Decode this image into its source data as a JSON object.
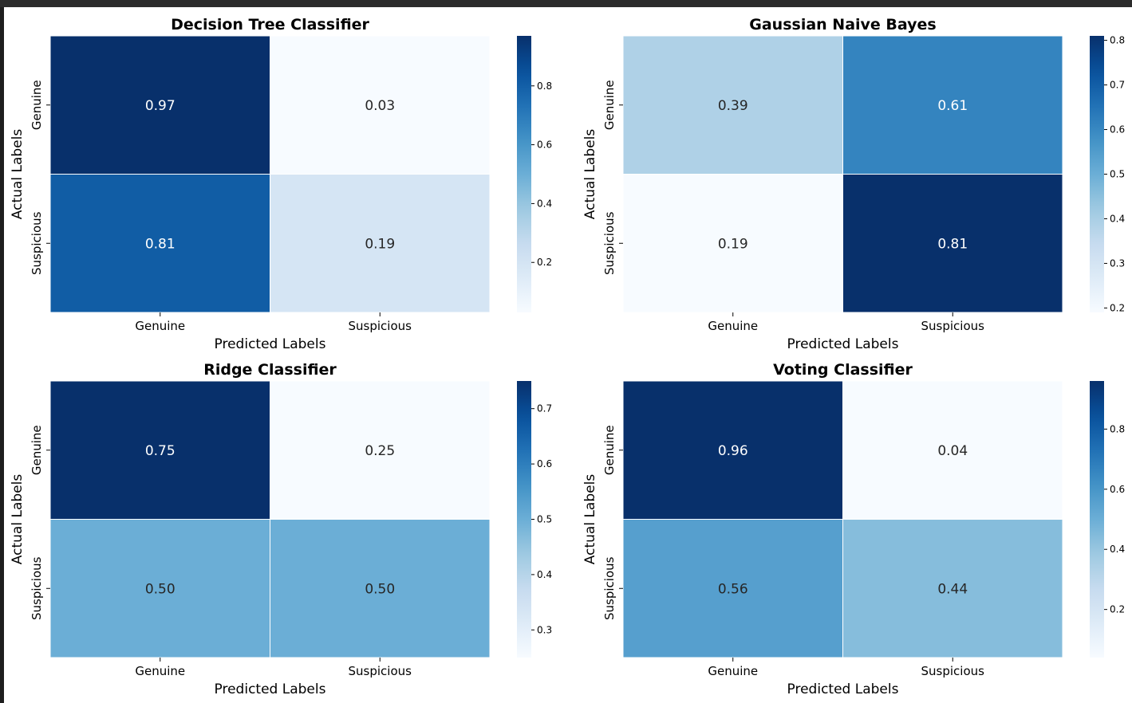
{
  "chart_data": [
    {
      "type": "heatmap",
      "title": "Decision Tree Classifier",
      "xlabel": "Predicted Labels",
      "ylabel": "Actual Labels",
      "x_categories": [
        "Genuine",
        "Suspicious"
      ],
      "y_categories": [
        "Genuine",
        "Suspicious"
      ],
      "values": [
        [
          0.97,
          0.03
        ],
        [
          0.81,
          0.19
        ]
      ],
      "value_labels": [
        [
          "0.97",
          "0.03"
        ],
        [
          "0.81",
          "0.19"
        ]
      ],
      "colorbar_ticks": [
        0.2,
        0.4,
        0.6,
        0.8
      ],
      "colorbar_tick_labels": [
        "0.2",
        "0.4",
        "0.6",
        "0.8"
      ],
      "colormap": "Blues"
    },
    {
      "type": "heatmap",
      "title": "Gaussian Naive Bayes",
      "xlabel": "Predicted Labels",
      "ylabel": "Actual Labels",
      "x_categories": [
        "Genuine",
        "Suspicious"
      ],
      "y_categories": [
        "Genuine",
        "Suspicious"
      ],
      "values": [
        [
          0.39,
          0.61
        ],
        [
          0.19,
          0.81
        ]
      ],
      "value_labels": [
        [
          "0.39",
          "0.61"
        ],
        [
          "0.19",
          "0.81"
        ]
      ],
      "colorbar_ticks": [
        0.2,
        0.3,
        0.4,
        0.5,
        0.6,
        0.7,
        0.8
      ],
      "colorbar_tick_labels": [
        "0.2",
        "0.3",
        "0.4",
        "0.5",
        "0.6",
        "0.7",
        "0.8"
      ],
      "colormap": "Blues"
    },
    {
      "type": "heatmap",
      "title": "Ridge Classifier",
      "xlabel": "Predicted Labels",
      "ylabel": "Actual Labels",
      "x_categories": [
        "Genuine",
        "Suspicious"
      ],
      "y_categories": [
        "Genuine",
        "Suspicious"
      ],
      "values": [
        [
          0.75,
          0.25
        ],
        [
          0.5,
          0.5
        ]
      ],
      "value_labels": [
        [
          "0.75",
          "0.25"
        ],
        [
          "0.50",
          "0.50"
        ]
      ],
      "colorbar_ticks": [
        0.3,
        0.4,
        0.5,
        0.6,
        0.7
      ],
      "colorbar_tick_labels": [
        "0.3",
        "0.4",
        "0.5",
        "0.6",
        "0.7"
      ],
      "colormap": "Blues"
    },
    {
      "type": "heatmap",
      "title": "Voting Classifier",
      "xlabel": "Predicted Labels",
      "ylabel": "Actual Labels",
      "x_categories": [
        "Genuine",
        "Suspicious"
      ],
      "y_categories": [
        "Genuine",
        "Suspicious"
      ],
      "values": [
        [
          0.96,
          0.04
        ],
        [
          0.56,
          0.44
        ]
      ],
      "value_labels": [
        [
          "0.96",
          "0.04"
        ],
        [
          "0.56",
          "0.44"
        ]
      ],
      "colorbar_ticks": [
        0.2,
        0.4,
        0.6,
        0.8
      ],
      "colorbar_tick_labels": [
        "0.2",
        "0.4",
        "0.6",
        "0.8"
      ],
      "colormap": "Blues"
    }
  ]
}
